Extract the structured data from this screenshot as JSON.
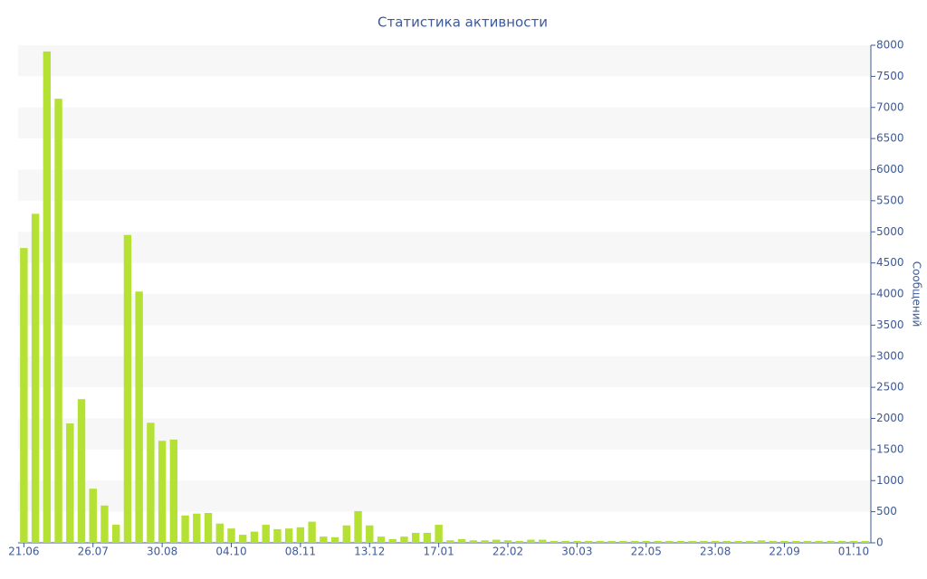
{
  "chart_data": {
    "type": "bar",
    "title": "Статистика активности",
    "y_axis_label": "Сообщений",
    "categories": [
      "21.06",
      null,
      null,
      null,
      null,
      null,
      "26.07",
      null,
      null,
      null,
      null,
      null,
      "30.08",
      null,
      null,
      null,
      null,
      null,
      "04.10",
      null,
      null,
      null,
      null,
      null,
      "08.11",
      null,
      null,
      null,
      null,
      null,
      "13.12",
      null,
      null,
      null,
      null,
      null,
      "17.01",
      null,
      null,
      null,
      null,
      null,
      "22.02",
      null,
      null,
      null,
      null,
      null,
      "30.03",
      null,
      null,
      null,
      null,
      null,
      "22.05",
      null,
      null,
      null,
      null,
      null,
      "23.08",
      null,
      null,
      null,
      null,
      null,
      "22.09",
      null,
      null,
      null,
      null,
      null,
      "01.10",
      null
    ],
    "values": [
      4740,
      5290,
      7900,
      7140,
      1920,
      2310,
      870,
      600,
      290,
      4950,
      4040,
      1930,
      1640,
      1660,
      440,
      470,
      480,
      310,
      230,
      130,
      180,
      290,
      220,
      230,
      250,
      340,
      100,
      90,
      280,
      510,
      280,
      100,
      60,
      100,
      160,
      160,
      290,
      40,
      60,
      40,
      40,
      50,
      40,
      30,
      50,
      50,
      30,
      30,
      30,
      30,
      30,
      30,
      30,
      30,
      30,
      30,
      30,
      30,
      30,
      30,
      30,
      30,
      30,
      30,
      40,
      30,
      30,
      30,
      30,
      30,
      30,
      30,
      30,
      30
    ],
    "color": "#b5e134",
    "ylim": [
      0,
      8000
    ],
    "yticks": [
      0,
      500,
      1000,
      1500,
      2000,
      2500,
      3000,
      3500,
      4000,
      4500,
      5000,
      5500,
      6000,
      6500,
      7000,
      7500,
      8000
    ],
    "y_axis_side": "right",
    "grid": "bands"
  }
}
